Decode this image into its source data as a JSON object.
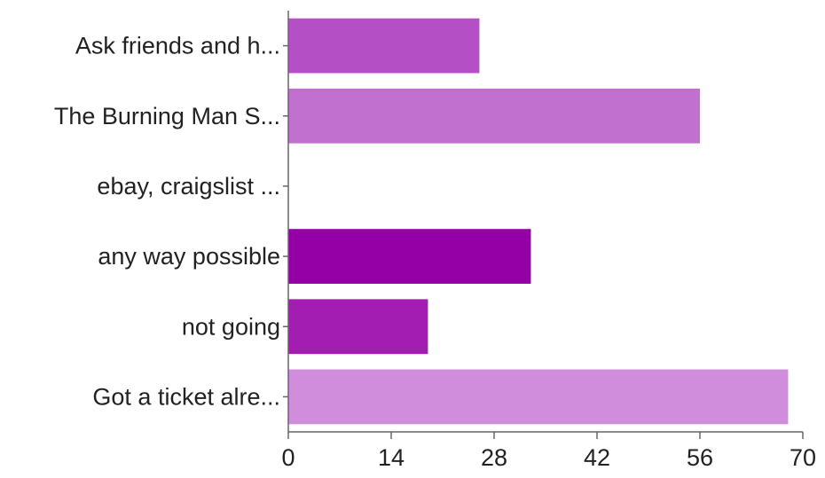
{
  "chart_data": {
    "type": "bar",
    "orientation": "horizontal",
    "title": "",
    "xlabel": "",
    "ylabel": "",
    "xlim": [
      0,
      70
    ],
    "x_ticks": [
      0,
      14,
      28,
      42,
      56,
      70
    ],
    "grid": false,
    "legend": "none",
    "categories": [
      "Ask friends and h...",
      "The Burning Man S...",
      "ebay, craigslist ...",
      "any way possible",
      "not going",
      "Got a ticket alre..."
    ],
    "values": [
      26,
      56,
      0,
      33,
      19,
      68
    ],
    "colors": [
      "#b44fc5",
      "#c270cf",
      "#d18fdb",
      "#9400a6",
      "#a31db3",
      "#cf8ddb"
    ]
  }
}
